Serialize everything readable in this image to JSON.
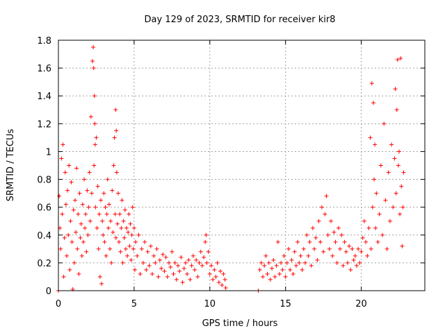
{
  "chart_data": {
    "type": "scatter",
    "title": "Day 129 of 2023, SRMTID for receiver kir8",
    "xlabel": "GPS time / hours",
    "ylabel": "SRMTID / TECUs",
    "xlim": [
      0,
      24.2
    ],
    "ylim": [
      0,
      1.8
    ],
    "xticks": [
      0,
      5,
      10,
      15,
      20
    ],
    "xtick_labels": [
      "0",
      "5",
      "10",
      "15",
      "20"
    ],
    "yticks": [
      0,
      0.2,
      0.4,
      0.6,
      0.8,
      1,
      1.2,
      1.4,
      1.6,
      1.8
    ],
    "ytick_labels": [
      "0",
      "0.2",
      "0.4",
      "0.6",
      "0.8",
      "1",
      "1.2",
      "1.4",
      "1.6",
      "1.8"
    ],
    "grid": true,
    "marker": "+",
    "color": "#ff0000",
    "series": [
      {
        "name": "SRMTID",
        "points": [
          [
            0.0,
            0.0
          ],
          [
            0.05,
            0.68
          ],
          [
            0.1,
            0.45
          ],
          [
            0.15,
            0.3
          ],
          [
            0.2,
            0.95
          ],
          [
            0.25,
            0.55
          ],
          [
            0.3,
            1.05
          ],
          [
            0.35,
            0.1
          ],
          [
            0.4,
            0.38
          ],
          [
            0.45,
            0.85
          ],
          [
            0.5,
            0.62
          ],
          [
            0.55,
            0.25
          ],
          [
            0.6,
            0.72
          ],
          [
            0.65,
            0.4
          ],
          [
            0.7,
            0.9
          ],
          [
            0.75,
            0.15
          ],
          [
            0.8,
            0.5
          ],
          [
            0.85,
            0.78
          ],
          [
            0.9,
            0.35
          ],
          [
            0.95,
            0.01
          ],
          [
            1.0,
            0.58
          ],
          [
            1.05,
            0.2
          ],
          [
            1.1,
            0.65
          ],
          [
            1.15,
            0.42
          ],
          [
            1.2,
            0.88
          ],
          [
            1.25,
            0.3
          ],
          [
            1.3,
            0.55
          ],
          [
            1.35,
            0.12
          ],
          [
            1.4,
            0.7
          ],
          [
            1.45,
            0.38
          ],
          [
            1.5,
            0.48
          ],
          [
            1.55,
            0.25
          ],
          [
            1.6,
            0.62
          ],
          [
            1.65,
            0.35
          ],
          [
            1.7,
            0.8
          ],
          [
            1.75,
            0.45
          ],
          [
            1.8,
            0.55
          ],
          [
            1.85,
            0.28
          ],
          [
            1.9,
            0.72
          ],
          [
            1.95,
            0.4
          ],
          [
            2.0,
            0.6
          ],
          [
            2.05,
            0.85
          ],
          [
            2.1,
            0.5
          ],
          [
            2.15,
            1.25
          ],
          [
            2.2,
            0.7
          ],
          [
            2.25,
            1.65
          ],
          [
            2.3,
            1.75
          ],
          [
            2.33,
            1.6
          ],
          [
            2.35,
            0.9
          ],
          [
            2.38,
            1.4
          ],
          [
            2.4,
            1.2
          ],
          [
            2.43,
            1.05
          ],
          [
            2.45,
            0.6
          ],
          [
            2.5,
            1.1
          ],
          [
            2.55,
            0.45
          ],
          [
            2.6,
            0.75
          ],
          [
            2.65,
            0.3
          ],
          [
            2.7,
            0.55
          ],
          [
            2.75,
            0.1
          ],
          [
            2.8,
            0.65
          ],
          [
            2.85,
            0.05
          ],
          [
            2.9,
            0.5
          ],
          [
            2.95,
            0.4
          ],
          [
            3.0,
            0.7
          ],
          [
            3.05,
            0.35
          ],
          [
            3.1,
            0.6
          ],
          [
            3.15,
            0.25
          ],
          [
            3.2,
            0.55
          ],
          [
            3.25,
            0.8
          ],
          [
            3.3,
            0.45
          ],
          [
            3.35,
            0.62
          ],
          [
            3.4,
            0.3
          ],
          [
            3.45,
            0.5
          ],
          [
            3.5,
            0.2
          ],
          [
            3.55,
            0.72
          ],
          [
            3.6,
            0.42
          ],
          [
            3.65,
            0.9
          ],
          [
            3.7,
            1.1
          ],
          [
            3.75,
            0.55
          ],
          [
            3.78,
            1.3
          ],
          [
            3.8,
            0.38
          ],
          [
            3.82,
            1.15
          ],
          [
            3.85,
            0.85
          ],
          [
            3.9,
            0.48
          ],
          [
            3.95,
            0.7
          ],
          [
            4.0,
            0.35
          ],
          [
            4.05,
            0.55
          ],
          [
            4.1,
            0.28
          ],
          [
            4.15,
            0.45
          ],
          [
            4.2,
            0.65
          ],
          [
            4.25,
            0.2
          ],
          [
            4.3,
            0.5
          ],
          [
            4.35,
            0.38
          ],
          [
            4.4,
            0.58
          ],
          [
            4.45,
            0.3
          ],
          [
            4.5,
            0.45
          ],
          [
            4.55,
            0.25
          ],
          [
            4.6,
            0.42
          ],
          [
            4.65,
            0.55
          ],
          [
            4.7,
            0.32
          ],
          [
            4.75,
            0.48
          ],
          [
            4.8,
            0.22
          ],
          [
            4.85,
            0.4
          ],
          [
            4.9,
            0.6
          ],
          [
            4.95,
            0.3
          ],
          [
            5.0,
            0.45
          ],
          [
            5.05,
            0.15
          ],
          [
            5.1,
            0.35
          ],
          [
            5.2,
            0.25
          ],
          [
            5.3,
            0.4
          ],
          [
            5.4,
            0.12
          ],
          [
            5.5,
            0.3
          ],
          [
            5.6,
            0.2
          ],
          [
            5.7,
            0.35
          ],
          [
            5.8,
            0.15
          ],
          [
            5.9,
            0.28
          ],
          [
            6.0,
            0.18
          ],
          [
            6.1,
            0.32
          ],
          [
            6.2,
            0.12
          ],
          [
            6.3,
            0.25
          ],
          [
            6.4,
            0.2
          ],
          [
            6.5,
            0.3
          ],
          [
            6.6,
            0.1
          ],
          [
            6.7,
            0.22
          ],
          [
            6.8,
            0.16
          ],
          [
            6.9,
            0.26
          ],
          [
            7.0,
            0.14
          ],
          [
            7.1,
            0.24
          ],
          [
            7.2,
            0.1
          ],
          [
            7.3,
            0.2
          ],
          [
            7.4,
            0.17
          ],
          [
            7.5,
            0.28
          ],
          [
            7.6,
            0.12
          ],
          [
            7.7,
            0.2
          ],
          [
            7.8,
            0.08
          ],
          [
            7.9,
            0.18
          ],
          [
            8.0,
            0.14
          ],
          [
            8.1,
            0.24
          ],
          [
            8.2,
            0.06
          ],
          [
            8.3,
            0.16
          ],
          [
            8.4,
            0.2
          ],
          [
            8.5,
            0.12
          ],
          [
            8.6,
            0.22
          ],
          [
            8.7,
            0.08
          ],
          [
            8.8,
            0.18
          ],
          [
            8.9,
            0.25
          ],
          [
            9.0,
            0.15
          ],
          [
            9.1,
            0.22
          ],
          [
            9.2,
            0.1
          ],
          [
            9.3,
            0.2
          ],
          [
            9.4,
            0.28
          ],
          [
            9.5,
            0.18
          ],
          [
            9.6,
            0.24
          ],
          [
            9.7,
            0.35
          ],
          [
            9.75,
            0.4
          ],
          [
            9.8,
            0.2
          ],
          [
            9.9,
            0.28
          ],
          [
            10.0,
            0.12
          ],
          [
            10.1,
            0.18
          ],
          [
            10.2,
            0.08
          ],
          [
            10.3,
            0.15
          ],
          [
            10.4,
            0.1
          ],
          [
            10.5,
            0.2
          ],
          [
            10.6,
            0.06
          ],
          [
            10.7,
            0.14
          ],
          [
            10.8,
            0.04
          ],
          [
            10.9,
            0.12
          ],
          [
            11.0,
            0.08
          ],
          [
            11.05,
            0.02
          ],
          [
            13.2,
            0.0
          ],
          [
            13.3,
            0.15
          ],
          [
            13.4,
            0.2
          ],
          [
            13.5,
            0.1
          ],
          [
            13.6,
            0.18
          ],
          [
            13.7,
            0.25
          ],
          [
            13.8,
            0.12
          ],
          [
            13.9,
            0.2
          ],
          [
            14.0,
            0.08
          ],
          [
            14.1,
            0.16
          ],
          [
            14.2,
            0.22
          ],
          [
            14.3,
            0.1
          ],
          [
            14.4,
            0.18
          ],
          [
            14.5,
            0.35
          ],
          [
            14.6,
            0.12
          ],
          [
            14.7,
            0.2
          ],
          [
            14.8,
            0.15
          ],
          [
            14.9,
            0.25
          ],
          [
            15.0,
            0.1
          ],
          [
            15.1,
            0.2
          ],
          [
            15.2,
            0.3
          ],
          [
            15.3,
            0.15
          ],
          [
            15.4,
            0.22
          ],
          [
            15.5,
            0.12
          ],
          [
            15.6,
            0.28
          ],
          [
            15.7,
            0.18
          ],
          [
            15.8,
            0.35
          ],
          [
            15.9,
            0.2
          ],
          [
            16.0,
            0.25
          ],
          [
            16.1,
            0.15
          ],
          [
            16.2,
            0.3
          ],
          [
            16.3,
            0.2
          ],
          [
            16.4,
            0.4
          ],
          [
            16.5,
            0.25
          ],
          [
            16.6,
            0.35
          ],
          [
            16.7,
            0.18
          ],
          [
            16.8,
            0.45
          ],
          [
            16.9,
            0.3
          ],
          [
            17.0,
            0.38
          ],
          [
            17.1,
            0.22
          ],
          [
            17.2,
            0.5
          ],
          [
            17.3,
            0.35
          ],
          [
            17.4,
            0.6
          ],
          [
            17.5,
            0.28
          ],
          [
            17.6,
            0.55
          ],
          [
            17.7,
            0.68
          ],
          [
            17.8,
            0.4
          ],
          [
            17.9,
            0.3
          ],
          [
            18.0,
            0.5
          ],
          [
            18.1,
            0.25
          ],
          [
            18.2,
            0.42
          ],
          [
            18.3,
            0.35
          ],
          [
            18.4,
            0.2
          ],
          [
            18.5,
            0.45
          ],
          [
            18.6,
            0.3
          ],
          [
            18.7,
            0.4
          ],
          [
            18.8,
            0.18
          ],
          [
            18.9,
            0.35
          ],
          [
            19.0,
            0.28
          ],
          [
            19.1,
            0.2
          ],
          [
            19.2,
            0.32
          ],
          [
            19.3,
            0.15
          ],
          [
            19.4,
            0.3
          ],
          [
            19.5,
            0.22
          ],
          [
            19.6,
            0.25
          ],
          [
            19.7,
            0.18
          ],
          [
            19.8,
            0.3
          ],
          [
            19.9,
            0.2
          ],
          [
            20.0,
            0.28
          ],
          [
            20.1,
            0.38
          ],
          [
            20.2,
            0.5
          ],
          [
            20.3,
            0.35
          ],
          [
            20.4,
            0.25
          ],
          [
            20.5,
            0.45
          ],
          [
            20.6,
            1.1
          ],
          [
            20.65,
            0.3
          ],
          [
            20.7,
            1.49
          ],
          [
            20.75,
            0.6
          ],
          [
            20.8,
            1.35
          ],
          [
            20.85,
            0.8
          ],
          [
            20.9,
            1.05
          ],
          [
            20.95,
            0.45
          ],
          [
            21.0,
            0.7
          ],
          [
            21.1,
            0.35
          ],
          [
            21.2,
            0.55
          ],
          [
            21.3,
            0.9
          ],
          [
            21.4,
            0.4
          ],
          [
            21.5,
            1.2
          ],
          [
            21.6,
            0.65
          ],
          [
            21.7,
            0.3
          ],
          [
            21.8,
            0.85
          ],
          [
            21.9,
            0.5
          ],
          [
            22.0,
            1.05
          ],
          [
            22.1,
            0.6
          ],
          [
            22.2,
            0.95
          ],
          [
            22.25,
            1.45
          ],
          [
            22.3,
            0.7
          ],
          [
            22.35,
            1.3
          ],
          [
            22.4,
            1.66
          ],
          [
            22.45,
            0.9
          ],
          [
            22.5,
            1.0
          ],
          [
            22.55,
            0.55
          ],
          [
            22.6,
            1.67
          ],
          [
            22.65,
            0.75
          ],
          [
            22.7,
            0.32
          ],
          [
            22.75,
            0.6
          ],
          [
            22.8,
            0.85
          ]
        ]
      }
    ]
  }
}
